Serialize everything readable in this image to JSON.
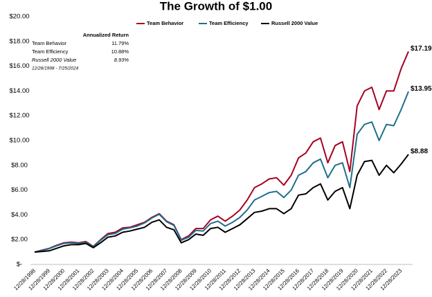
{
  "chart_data": {
    "type": "line",
    "title": "The Growth of $1.00",
    "categories": [
      "12/28/1998",
      null,
      "12/28/1999",
      null,
      "12/28/2000",
      null,
      "12/28/2001",
      null,
      "12/28/2002",
      null,
      "12/28/2003",
      null,
      "12/28/2004",
      null,
      "12/28/2005",
      null,
      "12/28/2006",
      null,
      "12/28/2007",
      null,
      "12/28/2008",
      null,
      "12/28/2009",
      null,
      "12/28/2010",
      null,
      "12/28/2011",
      null,
      "12/28/2012",
      null,
      "12/28/2013",
      null,
      "12/28/2014",
      null,
      "12/28/2015",
      null,
      "12/28/2016",
      null,
      "12/28/2017",
      null,
      "12/28/2018",
      null,
      "12/28/2019",
      null,
      "12/28/2020",
      null,
      "12/28/2021",
      null,
      "12/28/2022",
      null,
      "12/28/2023",
      null
    ],
    "series": [
      {
        "name": "Team Behavior",
        "color": "#a50021",
        "values": [
          1.0,
          1.15,
          1.3,
          1.55,
          1.75,
          1.8,
          1.75,
          1.85,
          1.45,
          2.0,
          2.5,
          2.6,
          2.95,
          3.0,
          3.2,
          3.4,
          3.8,
          4.1,
          3.5,
          3.2,
          2.0,
          2.3,
          2.9,
          2.9,
          3.6,
          3.9,
          3.5,
          3.9,
          4.4,
          5.2,
          6.2,
          6.5,
          6.9,
          7.0,
          6.4,
          7.2,
          8.6,
          9.0,
          9.9,
          10.2,
          8.2,
          9.6,
          9.9,
          7.5,
          12.8,
          14.0,
          14.3,
          12.5,
          14.0,
          14.0,
          15.8,
          17.19
        ],
        "value_labels": [
          null,
          null,
          null,
          null,
          null,
          null,
          null,
          null,
          null,
          null,
          null,
          null,
          null,
          null,
          null,
          null,
          null,
          null,
          null,
          null,
          null,
          null,
          null,
          null,
          null,
          null,
          null,
          null,
          null,
          null,
          null,
          null,
          null,
          null,
          null,
          null,
          null,
          null,
          null,
          null,
          null,
          null,
          null,
          null,
          null,
          null,
          null,
          null,
          null,
          null,
          null,
          "$17.19"
        ]
      },
      {
        "name": "Team Efficiency",
        "color": "#1f6f8b",
        "values": [
          1.0,
          1.12,
          1.28,
          1.5,
          1.7,
          1.75,
          1.7,
          1.8,
          1.4,
          1.95,
          2.4,
          2.5,
          2.85,
          2.95,
          3.1,
          3.35,
          3.75,
          4.05,
          3.45,
          3.15,
          1.95,
          2.2,
          2.75,
          2.7,
          3.3,
          3.5,
          3.1,
          3.4,
          3.8,
          4.4,
          5.2,
          5.5,
          5.8,
          5.9,
          5.4,
          6.0,
          7.2,
          7.5,
          8.2,
          8.5,
          7.0,
          8.0,
          8.2,
          6.2,
          10.5,
          11.3,
          11.5,
          10.0,
          11.3,
          11.2,
          12.5,
          13.95
        ],
        "value_labels": [
          null,
          null,
          null,
          null,
          null,
          null,
          null,
          null,
          null,
          null,
          null,
          null,
          null,
          null,
          null,
          null,
          null,
          null,
          null,
          null,
          null,
          null,
          null,
          null,
          null,
          null,
          null,
          null,
          null,
          null,
          null,
          null,
          null,
          null,
          null,
          null,
          null,
          null,
          null,
          null,
          null,
          null,
          null,
          null,
          null,
          null,
          null,
          null,
          null,
          null,
          null,
          "$13.95"
        ]
      },
      {
        "name": "Russell 2000 Value",
        "color": "#000000",
        "values": [
          1.0,
          1.05,
          1.1,
          1.3,
          1.5,
          1.6,
          1.6,
          1.7,
          1.35,
          1.75,
          2.2,
          2.3,
          2.6,
          2.7,
          2.85,
          3.0,
          3.4,
          3.6,
          3.0,
          2.8,
          1.75,
          2.0,
          2.45,
          2.35,
          2.9,
          3.0,
          2.6,
          2.9,
          3.2,
          3.7,
          4.2,
          4.3,
          4.5,
          4.5,
          4.1,
          4.5,
          5.6,
          5.7,
          6.2,
          6.5,
          5.2,
          5.9,
          6.2,
          4.5,
          7.2,
          8.3,
          8.4,
          7.2,
          8.0,
          7.4,
          8.1,
          8.88
        ],
        "value_labels": [
          null,
          null,
          null,
          null,
          null,
          null,
          null,
          null,
          null,
          null,
          null,
          null,
          null,
          null,
          null,
          null,
          null,
          null,
          null,
          null,
          null,
          null,
          null,
          null,
          null,
          null,
          null,
          null,
          null,
          null,
          null,
          null,
          null,
          null,
          null,
          null,
          null,
          null,
          null,
          null,
          null,
          null,
          null,
          null,
          null,
          null,
          null,
          null,
          null,
          null,
          null,
          "$8.88"
        ]
      }
    ],
    "ylim": [
      0,
      20
    ],
    "yticks": [
      {
        "value": 0,
        "label": "$-"
      },
      {
        "value": 2,
        "label": "$2.00"
      },
      {
        "value": 4,
        "label": "$4.00"
      },
      {
        "value": 6,
        "label": "$6.00"
      },
      {
        "value": 8,
        "label": "$8.00"
      },
      {
        "value": 10,
        "label": "$10.00"
      },
      {
        "value": 12,
        "label": "$12.00"
      },
      {
        "value": 14,
        "label": "$14.00"
      },
      {
        "value": 16,
        "label": "$16.00"
      },
      {
        "value": 18,
        "label": "$18.00"
      },
      {
        "value": 20,
        "label": "$20.00"
      }
    ],
    "grid": false,
    "legend": "top",
    "annotation": {
      "header": "Annualized Return",
      "rows": [
        [
          "Team Behavior",
          "11.79%"
        ],
        [
          "Team Efficiency",
          "10.88%"
        ],
        [
          "Russell 2000 Value",
          "8.93%"
        ]
      ],
      "note": "12/28/1998 - 7/25/2024"
    }
  }
}
